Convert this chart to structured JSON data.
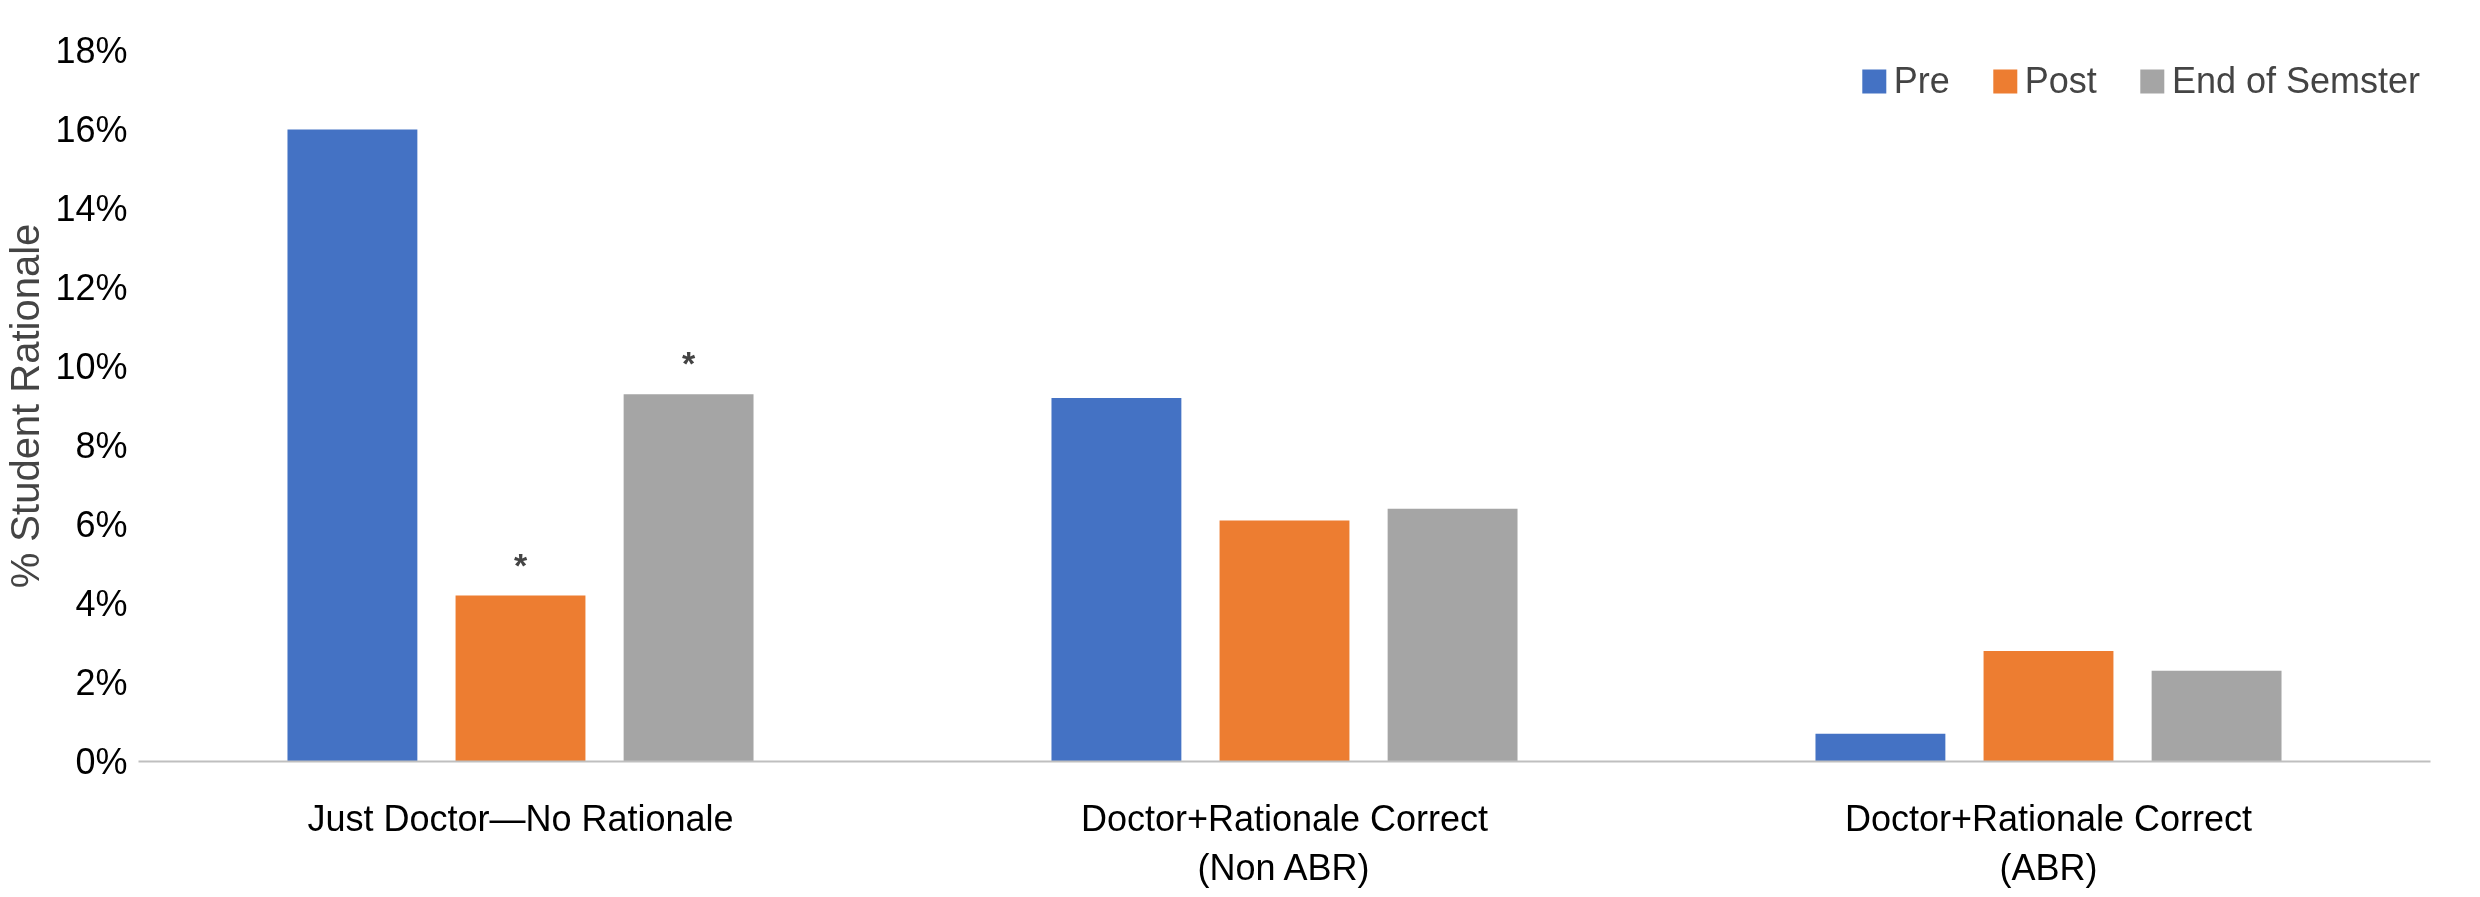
{
  "chart_data": {
    "type": "bar",
    "ylabel": "% Student Rationale",
    "categories": [
      "Just Doctor—No Rationale",
      "Doctor+Rationale Correct (Non ABR)",
      "Doctor+Rationale Correct (ABR)"
    ],
    "series": [
      {
        "name": "Pre",
        "color": "#4472c4",
        "values": [
          16.0,
          9.2,
          0.7
        ]
      },
      {
        "name": "Post",
        "color": "#ed7d31",
        "values": [
          4.2,
          6.1,
          2.8
        ],
        "value_labels": [
          "*",
          null,
          null
        ]
      },
      {
        "name": "End of Semster",
        "color": "#a5a5a5",
        "values": [
          9.3,
          6.4,
          2.3
        ],
        "value_labels": [
          "*",
          null,
          null
        ]
      }
    ],
    "ylim": [
      0,
      18
    ],
    "yticks": [
      {
        "value": 0,
        "label": "0%"
      },
      {
        "value": 2,
        "label": "2%"
      },
      {
        "value": 4,
        "label": "4%"
      },
      {
        "value": 6,
        "label": "6%"
      },
      {
        "value": 8,
        "label": "8%"
      },
      {
        "value": 10,
        "label": "10%"
      },
      {
        "value": 12,
        "label": "12%"
      },
      {
        "value": 14,
        "label": "14%"
      },
      {
        "value": 16,
        "label": "16%"
      },
      {
        "value": 18,
        "label": "18%"
      }
    ],
    "grid": false,
    "legend": "top right"
  }
}
